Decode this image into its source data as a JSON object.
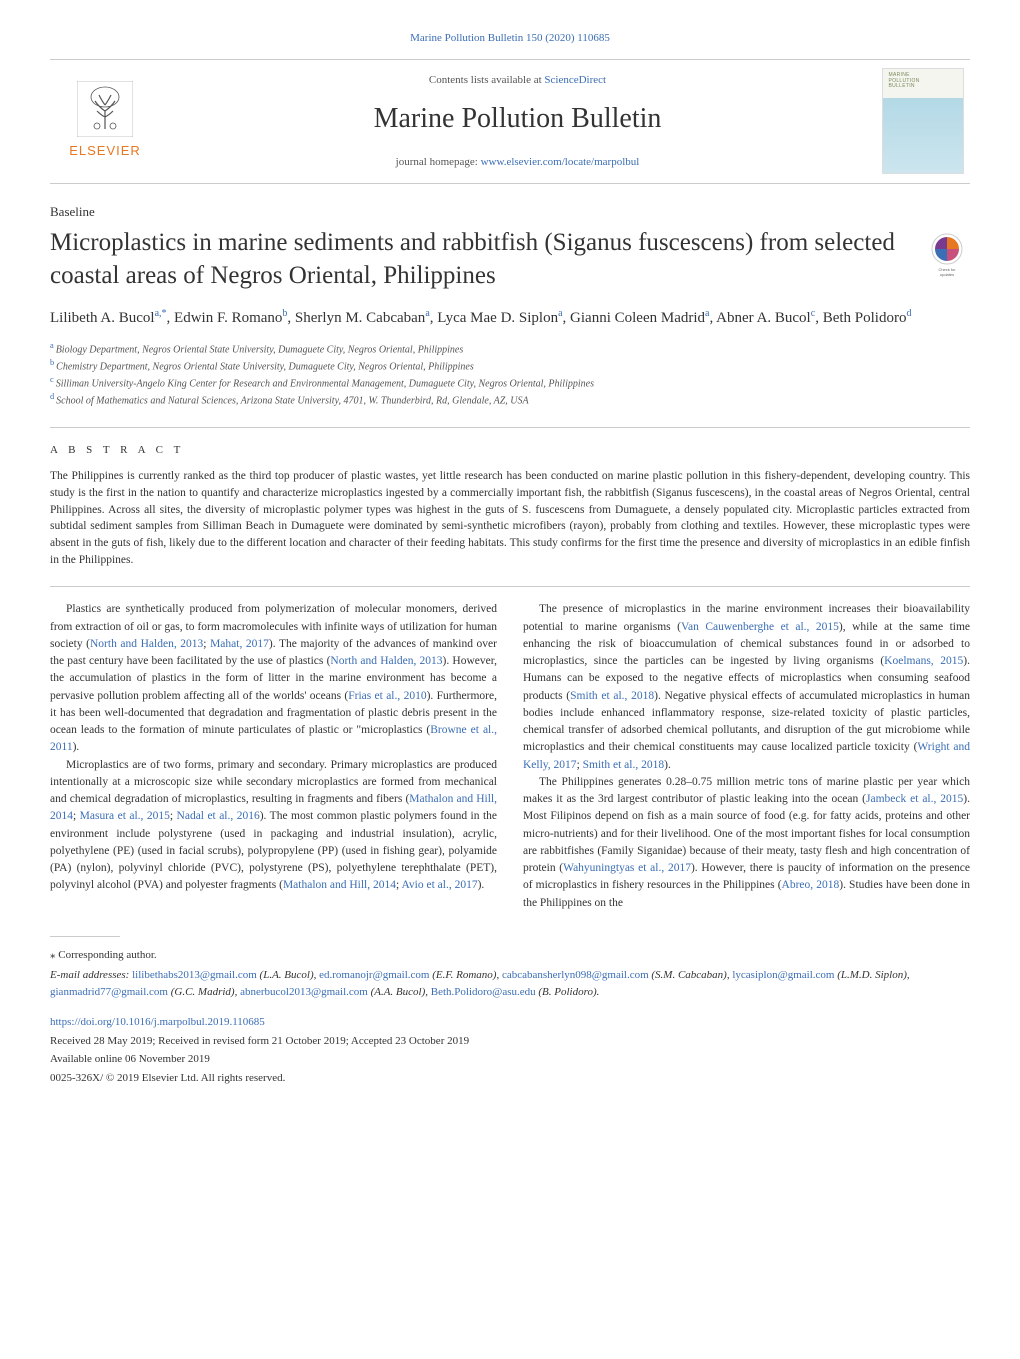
{
  "journal_link_top": "Marine Pollution Bulletin 150 (2020) 110685",
  "header": {
    "contents_prefix": "Contents lists available at ",
    "contents_link": "ScienceDirect",
    "journal_title": "Marine Pollution Bulletin",
    "homepage_prefix": "journal homepage: ",
    "homepage_url": "www.elsevier.com/locate/marpolbul",
    "elsevier_label": "ELSEVIER",
    "cover_line1": "MARINE",
    "cover_line2": "POLLUTION",
    "cover_line3": "BULLETIN"
  },
  "baseline_label": "Baseline",
  "article_title": "Microplastics in marine sediments and rabbitfish (Siganus fuscescens) from selected coastal areas of Negros Oriental, Philippines",
  "authors_html": "Lilibeth A. Bucol<sup class=\"sup-link\">a,</sup><sup class=\"sup-link\">*</sup>, Edwin F. Romano<sup class=\"sup-link\">b</sup>, Sherlyn M. Cabcaban<sup class=\"sup-link\">a</sup>, Lyca Mae D. Siplon<sup class=\"sup-link\">a</sup>, Gianni Coleen Madrid<sup class=\"sup-link\">a</sup>, Abner A. Bucol<sup class=\"sup-link\">c</sup>, Beth Polidoro<sup class=\"sup-link\">d</sup>",
  "affiliations": {
    "a": "Biology Department, Negros Oriental State University, Dumaguete City, Negros Oriental, Philippines",
    "b": "Chemistry Department, Negros Oriental State University, Dumaguete City, Negros Oriental, Philippines",
    "c": "Silliman University-Angelo King Center for Research and Environmental Management, Dumaguete City, Negros Oriental, Philippines",
    "d": "School of Mathematics and Natural Sciences, Arizona State University, 4701, W. Thunderbird, Rd, Glendale, AZ, USA"
  },
  "abstract_label": "A B S T R A C T",
  "abstract_text": "The Philippines is currently ranked as the third top producer of plastic wastes, yet little research has been conducted on marine plastic pollution in this fishery-dependent, developing country. This study is the first in the nation to quantify and characterize microplastics ingested by a commercially important fish, the rabbitfish (Siganus fuscescens), in the coastal areas of Negros Oriental, central Philippines. Across all sites, the diversity of microplastic polymer types was highest in the guts of S. fuscescens from Dumaguete, a densely populated city. Microplastic particles extracted from subtidal sediment samples from Silliman Beach in Dumaguete were dominated by semi-synthetic microfibers (rayon), probably from clothing and textiles. However, these microplastic types were absent in the guts of fish, likely due to the different location and character of their feeding habitats. This study confirms for the first time the presence and diversity of microplastics in an edible finfish in the Philippines.",
  "body": {
    "left": {
      "p1_html": "Plastics are synthetically produced from polymerization of molecular monomers, derived from extraction of oil or gas, to form macromolecules with infinite ways of utilization for human society (<span class=\"ref-link\">North and Halden, 2013</span>; <span class=\"ref-link\">Mahat, 2017</span>). The majority of the advances of mankind over the past century have been facilitated by the use of plastics (<span class=\"ref-link\">North and Halden, 2013</span>). However, the accumulation of plastics in the form of litter in the marine environment has become a pervasive pollution problem affecting all of the worlds' oceans (<span class=\"ref-link\">Frias et al., 2010</span>). Furthermore, it has been well-documented that degradation and fragmentation of plastic debris present in the ocean leads to the formation of minute particulates of plastic or \"microplastics (<span class=\"ref-link\">Browne et al., 2011</span>).",
      "p2_html": "Microplastics are of two forms, primary and secondary. Primary microplastics are produced intentionally at a microscopic size while secondary microplastics are formed from mechanical and chemical degradation of microplastics, resulting in fragments and fibers (<span class=\"ref-link\">Mathalon and Hill, 2014</span>; <span class=\"ref-link\">Masura et al., 2015</span>; <span class=\"ref-link\">Nadal et al., 2016</span>). The most common plastic polymers found in the environment include polystyrene (used in packaging and industrial insulation), acrylic, polyethylene (PE) (used in facial scrubs), polypropylene (PP) (used in fishing gear), polyamide (PA) (nylon), polyvinyl chloride (PVC), polystyrene (PS), polyethylene terephthalate (PET), polyvinyl alcohol (PVA) and polyester fragments (<span class=\"ref-link\">Mathalon and Hill, 2014</span>; <span class=\"ref-link\">Avio et al., 2017</span>)."
    },
    "right": {
      "p1_html": "The presence of microplastics in the marine environment increases their bioavailability potential to marine organisms (<span class=\"ref-link\">Van Cauwenberghe et al., 2015</span>), while at the same time enhancing the risk of bioaccumulation of chemical substances found in or adsorbed to microplastics, since the particles can be ingested by living organisms (<span class=\"ref-link\">Koelmans, 2015</span>). Humans can be exposed to the negative effects of microplastics when consuming seafood products (<span class=\"ref-link\">Smith et al., 2018</span>). Negative physical effects of accumulated microplastics in human bodies include enhanced inflammatory response, size-related toxicity of plastic particles, chemical transfer of adsorbed chemical pollutants, and disruption of the gut microbiome while microplastics and their chemical constituents may cause localized particle toxicity (<span class=\"ref-link\">Wright and Kelly, 2017</span>; <span class=\"ref-link\">Smith et al., 2018</span>).",
      "p2_html": "The Philippines generates 0.28–0.75 million metric tons of marine plastic per year which makes it as the 3rd largest contributor of plastic leaking into the ocean (<span class=\"ref-link\">Jambeck et al., 2015</span>). Most Filipinos depend on fish as a main source of food (e.g. for fatty acids, proteins and other micro-nutrients) and for their livelihood. One of the most important fishes for local consumption are rabbitfishes (Family Siganidae) because of their meaty, tasty flesh and high concentration of protein (<span class=\"ref-link\">Wahyuningtyas et al., 2017</span>). However, there is paucity of information on the presence of microplastics in fishery resources in the Philippines (<span class=\"ref-link\">Abreo, 2018</span>). Studies have been done in the Philippines on the"
    }
  },
  "footer": {
    "corresponding": "⁎ Corresponding author.",
    "emails_label": "E-mail addresses:",
    "emails_html": " <a>lilibethabs2013@gmail.com</a> (L.A. Bucol), <a>ed.romanojr@gmail.com</a> (E.F. Romano), <a>cabcabansherlyn098@gmail.com</a> (S.M. Cabcaban), <a>lycasiplon@gmail.com</a> (L.M.D. Siplon), <a>gianmadrid77@gmail.com</a> (G.C. Madrid), <a>abnerbucol2013@gmail.com</a> (A.A. Bucol), <a>Beth.Polidoro@asu.edu</a> (B. Polidoro).",
    "doi": "https://doi.org/10.1016/j.marpolbul.2019.110685",
    "received": "Received 28 May 2019; Received in revised form 21 October 2019; Accepted 23 October 2019",
    "available": "Available online 06 November 2019",
    "copyright": "0025-326X/ © 2019 Elsevier Ltd. All rights reserved."
  },
  "colors": {
    "link": "#3b6eb5",
    "elsevier_orange": "#e87722",
    "text": "#333333",
    "border": "#cccccc"
  }
}
